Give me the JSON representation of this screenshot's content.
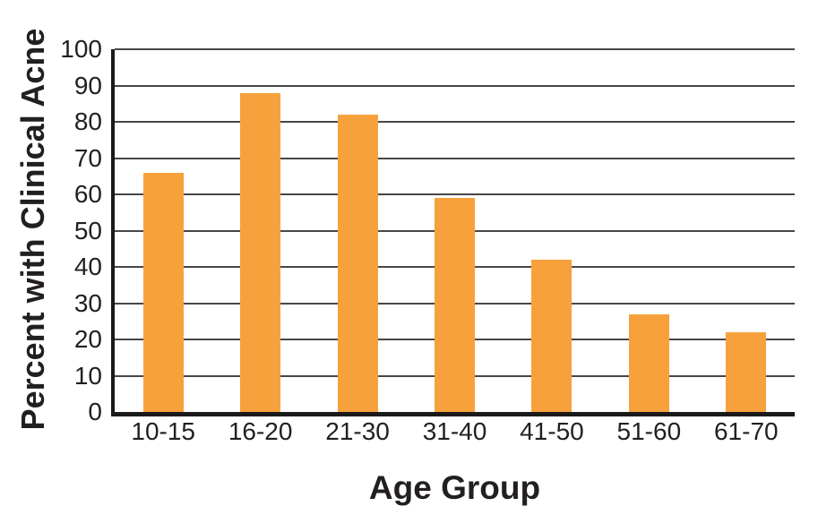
{
  "chart_data": {
    "type": "bar",
    "title": "",
    "categories": [
      "10-15",
      "16-20",
      "21-30",
      "31-40",
      "41-50",
      "51-60",
      "61-70"
    ],
    "values": [
      66,
      88,
      82,
      59,
      42,
      27,
      22
    ],
    "xlabel": "Age Group",
    "ylabel": "Percent with Clinical Acne",
    "ylim": [
      0,
      100
    ],
    "yticks": [
      0,
      10,
      20,
      30,
      40,
      50,
      60,
      70,
      80,
      90,
      100
    ],
    "grid": true,
    "legend": false,
    "bar_color": "#F7A13D",
    "gridline_color": "#474747",
    "axis_color": "#1A1A1A",
    "text_color": "#231F20",
    "background_color": "#FFFFFF"
  }
}
